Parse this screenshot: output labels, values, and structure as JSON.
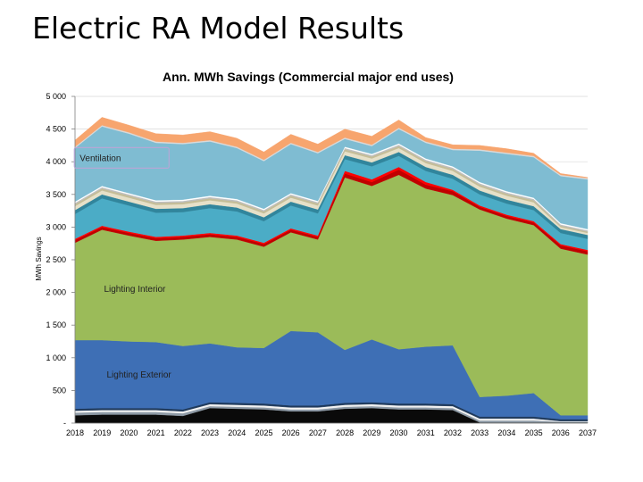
{
  "slide": {
    "title": "Electric RA Model Results"
  },
  "chart_data": {
    "type": "area",
    "stacked": true,
    "title": "Ann. MWh Savings (Commercial major end uses)",
    "xlabel": "",
    "ylabel": "MWh Savings",
    "ylim": [
      0,
      5000
    ],
    "yticks": [
      0,
      500,
      1000,
      1500,
      2000,
      2500,
      3000,
      3500,
      4000,
      4500,
      5000
    ],
    "ytick_labels": [
      "-",
      "500",
      "1 000",
      "1 500",
      "2 000",
      "2 500",
      "3 000",
      "3 500",
      "4 000",
      "4 500",
      "5 000"
    ],
    "grid": true,
    "legend": "none",
    "categories": [
      "2018",
      "2019",
      "2020",
      "2021",
      "2022",
      "2023",
      "2024",
      "2025",
      "2026",
      "2027",
      "2028",
      "2029",
      "2030",
      "2031",
      "2032",
      "2033",
      "2034",
      "2035",
      "2036",
      "2037"
    ],
    "annotations": [
      {
        "text": "Ventilation",
        "series": "Ventilation"
      },
      {
        "text": "Lighting Interior",
        "series": "Lighting Interior"
      },
      {
        "text": "Lighting Exterior",
        "series": "Lighting Exterior"
      }
    ],
    "series": [
      {
        "color": "#0a0a0a",
        "values": [
          120,
          130,
          130,
          130,
          110,
          230,
          220,
          210,
          180,
          180,
          220,
          230,
          210,
          210,
          200,
          10,
          10,
          10,
          10,
          10
        ]
      },
      {
        "color": "#8e9aa6",
        "values": [
          40,
          40,
          40,
          40,
          40,
          30,
          30,
          30,
          30,
          30,
          30,
          30,
          30,
          30,
          30,
          30,
          30,
          30,
          10,
          10
        ]
      },
      {
        "color": "#f2f2f2",
        "values": [
          30,
          30,
          30,
          30,
          30,
          30,
          30,
          30,
          30,
          30,
          30,
          30,
          30,
          30,
          30,
          30,
          30,
          30,
          10,
          10
        ]
      },
      {
        "color": "#1f3a5c",
        "values": [
          30,
          30,
          30,
          30,
          30,
          30,
          30,
          30,
          30,
          30,
          30,
          30,
          30,
          30,
          30,
          30,
          30,
          30,
          30,
          30
        ]
      },
      {
        "name": "Lighting Exterior",
        "color": "#3e6fb5",
        "values": [
          1050,
          1040,
          1020,
          1010,
          970,
          900,
          850,
          850,
          1140,
          1120,
          810,
          960,
          830,
          870,
          900,
          300,
          320,
          360,
          60,
          60
        ]
      },
      {
        "name": "Lighting Interior",
        "color": "#9bbb59",
        "values": [
          1490,
          1690,
          1620,
          1550,
          1630,
          1630,
          1650,
          1550,
          1510,
          1420,
          2640,
          2350,
          2670,
          2420,
          2300,
          2870,
          2710,
          2570,
          2550,
          2460
        ]
      },
      {
        "color": "#c00000",
        "values": [
          40,
          40,
          40,
          40,
          40,
          40,
          40,
          40,
          40,
          40,
          60,
          60,
          80,
          60,
          60,
          40,
          40,
          40,
          50,
          50
        ]
      },
      {
        "color": "#ff0000",
        "values": [
          20,
          20,
          20,
          20,
          20,
          20,
          20,
          20,
          20,
          20,
          40,
          40,
          40,
          40,
          20,
          20,
          20,
          20,
          20,
          20
        ]
      },
      {
        "color": "#4bacc6",
        "values": [
          380,
          420,
          400,
          370,
          360,
          380,
          370,
          330,
          350,
          340,
          180,
          200,
          170,
          170,
          170,
          170,
          170,
          170,
          170,
          170
        ]
      },
      {
        "color": "#31859c",
        "values": [
          60,
          60,
          60,
          60,
          60,
          60,
          60,
          60,
          60,
          60,
          60,
          60,
          60,
          60,
          60,
          60,
          60,
          60,
          60,
          60
        ]
      },
      {
        "color": "#e6e0c8",
        "values": [
          60,
          60,
          60,
          60,
          60,
          60,
          60,
          60,
          60,
          60,
          60,
          60,
          60,
          60,
          60,
          60,
          60,
          60,
          30,
          30
        ]
      },
      {
        "color": "#c4bd97",
        "values": [
          30,
          30,
          30,
          30,
          30,
          30,
          30,
          30,
          30,
          30,
          30,
          30,
          30,
          30,
          30,
          30,
          30,
          30,
          20,
          20
        ]
      },
      {
        "color": "#bfbfbf",
        "values": [
          20,
          20,
          20,
          20,
          20,
          20,
          20,
          20,
          20,
          20,
          20,
          20,
          20,
          20,
          20,
          20,
          20,
          20,
          20,
          20
        ]
      },
      {
        "color": "#ffffff",
        "values": [
          20,
          20,
          20,
          20,
          20,
          20,
          20,
          20,
          20,
          20,
          20,
          20,
          20,
          20,
          20,
          20,
          20,
          20,
          20,
          20
        ]
      },
      {
        "name": "Ventilation",
        "color": "#7fbcd2",
        "values": [
          820,
          910,
          910,
          880,
          850,
          830,
          780,
          730,
          750,
          730,
          120,
          120,
          220,
          240,
          250,
          480,
          570,
          620,
          720,
          760
        ]
      },
      {
        "color": "#d9d9d9",
        "values": [
          20,
          20,
          20,
          20,
          20,
          20,
          20,
          20,
          20,
          20,
          20,
          20,
          20,
          20,
          20,
          20,
          20,
          20,
          20,
          20
        ]
      },
      {
        "color": "#f7a56e",
        "values": [
          100,
          120,
          110,
          120,
          120,
          130,
          130,
          120,
          130,
          120,
          130,
          130,
          120,
          60,
          60,
          60,
          60,
          40,
          20,
          10
        ]
      }
    ]
  }
}
